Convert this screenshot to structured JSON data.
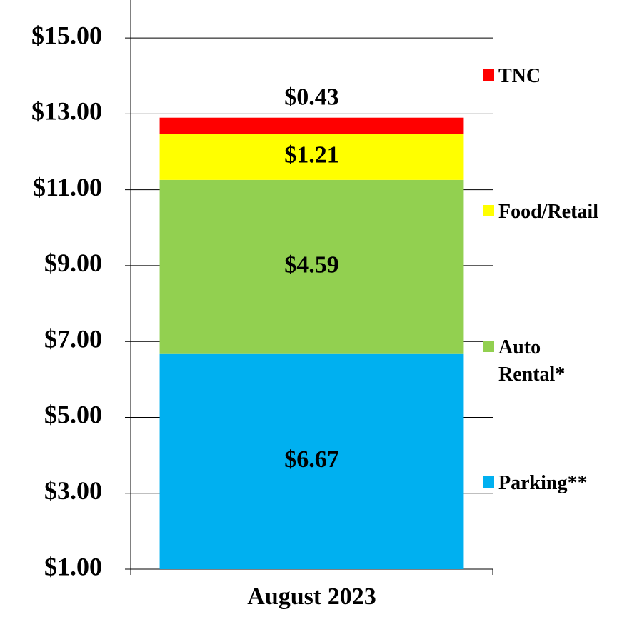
{
  "chart_data": {
    "type": "stacked_bar",
    "categories": [
      "August 2023"
    ],
    "series": [
      {
        "name": "Parking**",
        "color": "#00b0f0",
        "values": [
          6.67
        ],
        "value_labels": [
          "$6.67"
        ]
      },
      {
        "name": "Auto Rental*",
        "color": "#92d050",
        "values": [
          4.59
        ],
        "value_labels": [
          "$4.59"
        ]
      },
      {
        "name": "Food/Retail",
        "color": "#ffff00",
        "values": [
          1.21
        ],
        "value_labels": [
          "$1.21"
        ]
      },
      {
        "name": "TNC",
        "color": "#ff0000",
        "values": [
          0.43
        ],
        "value_labels": [
          "$0.43"
        ]
      }
    ],
    "ylim": [
      1,
      16
    ],
    "yticks": [
      {
        "value": 1,
        "label": "$1.00"
      },
      {
        "value": 3,
        "label": "$3.00"
      },
      {
        "value": 5,
        "label": "$5.00"
      },
      {
        "value": 7,
        "label": "$7.00"
      },
      {
        "value": 9,
        "label": "$9.00"
      },
      {
        "value": 11,
        "label": "$11.00"
      },
      {
        "value": 13,
        "label": "$13.00"
      },
      {
        "value": 15,
        "label": "$15.00"
      }
    ],
    "grid": true,
    "legend": "right"
  }
}
